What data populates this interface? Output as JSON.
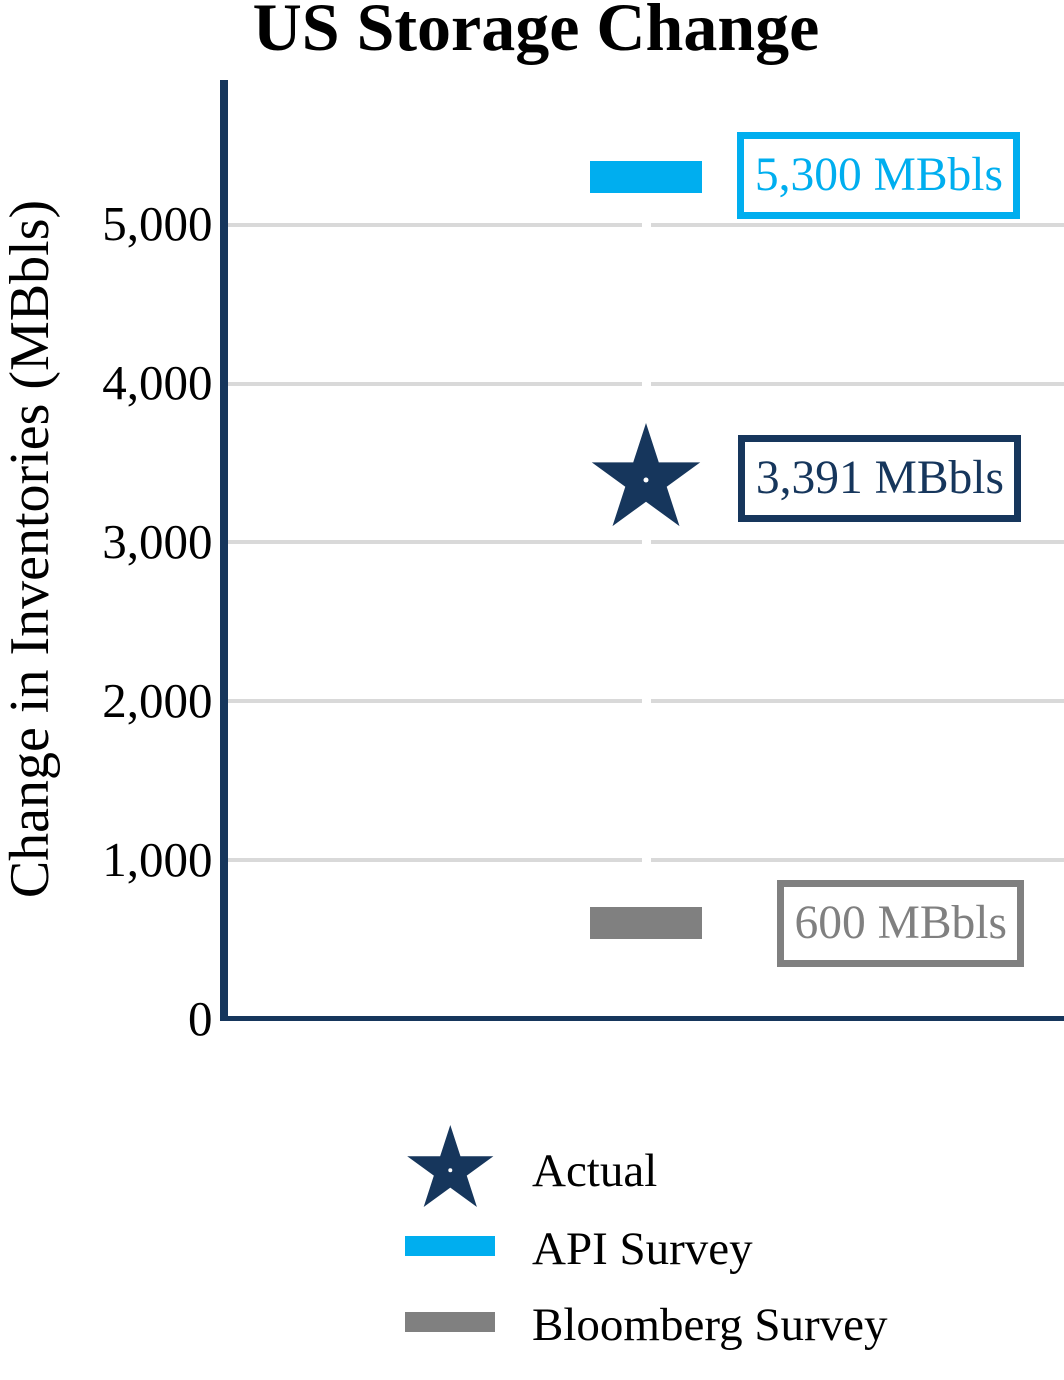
{
  "chart_data": {
    "type": "scatter",
    "title": "US Storage Change",
    "ylabel": "Change in Inventories (MBbls)",
    "unit": "MBbls",
    "ylim": [
      0,
      5900
    ],
    "yticks": [
      {
        "value": 0,
        "label": "0"
      },
      {
        "value": 1000,
        "label": "1,000"
      },
      {
        "value": 2000,
        "label": "2,000"
      },
      {
        "value": 3000,
        "label": "3,000"
      },
      {
        "value": 4000,
        "label": "4,000"
      },
      {
        "value": 5000,
        "label": "5,000"
      }
    ],
    "grid": "horizontal",
    "legend_position": "bottom",
    "series": [
      {
        "name": "API Survey",
        "marker": "bar",
        "color": "#00AEEF",
        "value": 5300,
        "data_label": "5,300 MBbls"
      },
      {
        "name": "Actual",
        "marker": "star",
        "color": "#16365C",
        "value": 3391,
        "data_label": "3,391 MBbls"
      },
      {
        "name": "Bloomberg Survey",
        "marker": "bar",
        "color": "#808080",
        "value": 600,
        "data_label": "600 MBbls"
      }
    ]
  },
  "legend": {
    "items": [
      {
        "label": "Actual",
        "marker": "star",
        "color": "#16365C"
      },
      {
        "label": "API Survey",
        "marker": "bar",
        "color": "#00AEEF"
      },
      {
        "label": "Bloomberg Survey",
        "marker": "bar",
        "color": "#808080"
      }
    ]
  },
  "colors": {
    "navy": "#16365C",
    "blue": "#00AEEF",
    "gray": "#808080",
    "gridline": "#D9D9D9",
    "text": "#000000",
    "background": "#ffffff"
  }
}
